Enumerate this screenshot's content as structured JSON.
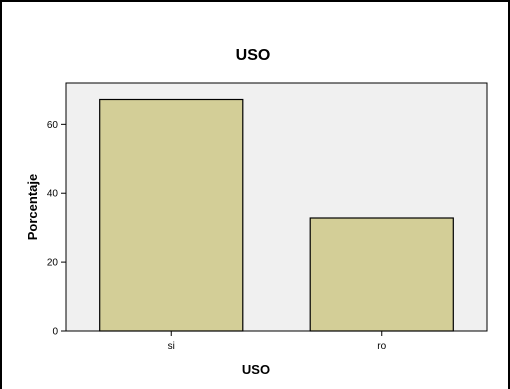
{
  "chart_data": {
    "type": "bar",
    "title": "USO",
    "xlabel": "USO",
    "ylabel": "Porcentaje",
    "categories": [
      "si",
      "ro"
    ],
    "values": [
      67.2,
      32.8
    ],
    "ylim": [
      0,
      72
    ],
    "yticks": [
      0,
      20,
      40,
      60
    ],
    "grid": false,
    "colors": {
      "bar_fill": "#d3ce97",
      "bar_stroke": "#000000",
      "plot_background": "#f0f0f0",
      "axis": "#000000"
    }
  }
}
